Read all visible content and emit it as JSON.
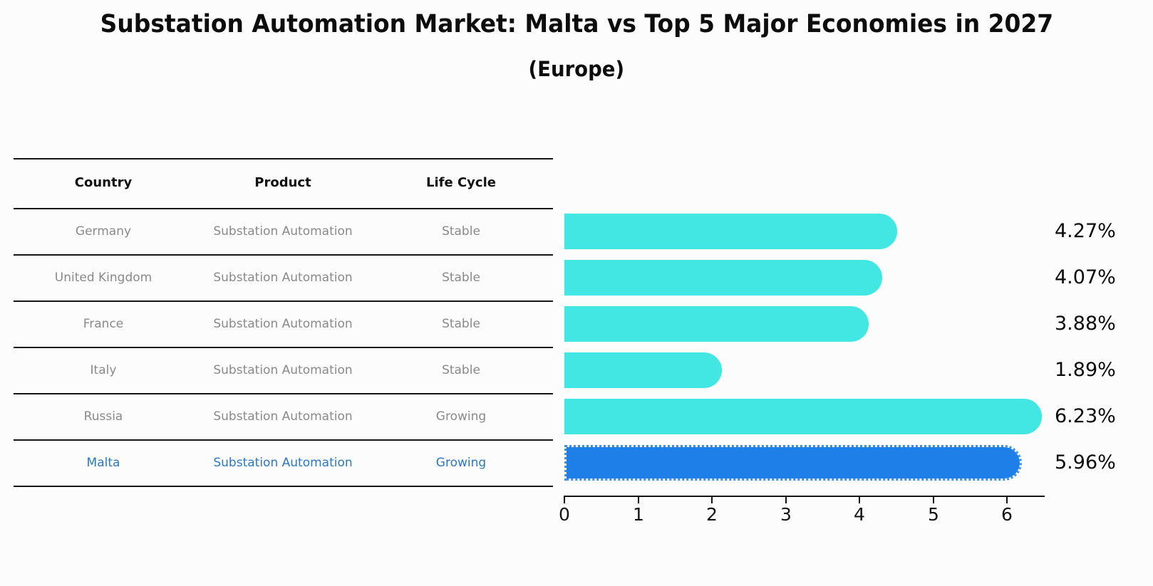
{
  "title": "Substation Automation Market: Malta vs Top 5 Major Economies in 2027",
  "subtitle": "(Europe)",
  "colors": {
    "bar_default": "#42E6E2",
    "bar_highlight": "#1E7FE8",
    "highlight_text": "#2979CA",
    "row_text": "#8a8a8a",
    "header_text": "#111111"
  },
  "table": {
    "headers": [
      "Country",
      "Product",
      "Life Cycle"
    ],
    "rows": [
      {
        "country": "Germany",
        "product": "Substation Automation",
        "life_cycle": "Stable"
      },
      {
        "country": "United Kingdom",
        "product": "Substation Automation",
        "life_cycle": "Stable"
      },
      {
        "country": "France",
        "product": "Substation Automation",
        "life_cycle": "Stable"
      },
      {
        "country": "Italy",
        "product": "Substation Automation",
        "life_cycle": "Stable"
      },
      {
        "country": "Russia",
        "product": "Substation Automation",
        "life_cycle": "Growing"
      },
      {
        "country": "Malta",
        "product": "Substation Automation",
        "life_cycle": "Growing"
      }
    ]
  },
  "chart_data": {
    "type": "bar",
    "orientation": "horizontal",
    "title": "Substation Automation Market: Malta vs Top 5 Major Economies in 2027 (Europe)",
    "categories": [
      "Germany",
      "United Kingdom",
      "France",
      "Italy",
      "Russia",
      "Malta"
    ],
    "values": [
      4.27,
      4.07,
      3.88,
      1.89,
      6.23,
      5.96
    ],
    "labels": [
      "4.27%",
      "4.07%",
      "3.88%",
      "1.89%",
      "6.23%",
      "5.96%"
    ],
    "unit": "%",
    "highlight_index": 5,
    "highlight_category": "Malta",
    "xlabel": "",
    "ylabel": "",
    "xlim": [
      0,
      6.5
    ],
    "xticks": [
      0,
      1,
      2,
      3,
      4,
      5,
      6
    ],
    "grid": false,
    "legend": false
  }
}
